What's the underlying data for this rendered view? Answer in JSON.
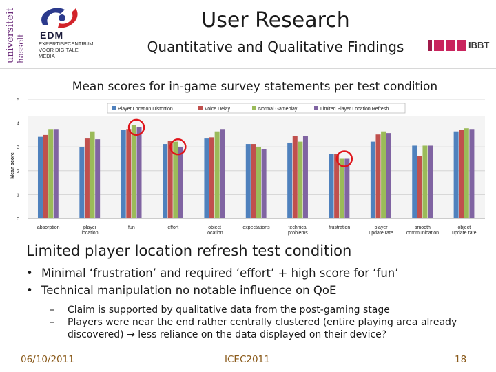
{
  "header": {
    "title": "User Research",
    "subtitle": "Quantitative and Qualitative Findings",
    "uh_logo": {
      "line1": "universiteit",
      "line2": "hasselt"
    },
    "edm_logo": {
      "name": "EDM",
      "subtitle": "EXPERTISECENTRUM VOOR DIGITALE MEDIA"
    },
    "ibbt_logo": {
      "name": "IBBT"
    }
  },
  "chart_heading": "Mean scores for in-game survey statements per test condition",
  "chart_data": {
    "type": "bar",
    "title": "",
    "xlabel": "",
    "ylabel": "Mean score",
    "ylim": [
      0,
      5
    ],
    "yticks": [
      "0",
      "1",
      "2",
      "3",
      "4",
      "5"
    ],
    "grid": true,
    "legend_position": "top",
    "categories": [
      "absorption",
      "player location",
      "fun",
      "effort",
      "object location",
      "expectations",
      "technical problems",
      "frustration",
      "player update rate",
      "smooth communication",
      "object update rate"
    ],
    "series": [
      {
        "name": "Player Location Distortion",
        "color": "#4f81bd",
        "values": [
          3.42,
          3.0,
          3.72,
          3.12,
          3.35,
          3.12,
          3.18,
          2.7,
          3.22,
          3.05,
          3.65
        ]
      },
      {
        "name": "Voice Delay",
        "color": "#c0504d",
        "values": [
          3.5,
          3.35,
          3.75,
          3.25,
          3.4,
          3.12,
          3.45,
          2.7,
          3.52,
          2.62,
          3.72
        ]
      },
      {
        "name": "Normal Gameplay",
        "color": "#9bbb59",
        "values": [
          3.75,
          3.65,
          3.92,
          3.22,
          3.65,
          3.0,
          3.22,
          2.5,
          3.65,
          3.05,
          3.78
        ]
      },
      {
        "name": "Limited Player Location Refresh",
        "color": "#8064a2",
        "values": [
          3.75,
          3.32,
          3.82,
          3.0,
          3.75,
          2.9,
          3.45,
          2.5,
          3.58,
          3.05,
          3.75
        ]
      }
    ],
    "highlighted": [
      {
        "category": "fun",
        "series": "Limited Player Location Refresh"
      },
      {
        "category": "effort",
        "series": "Limited Player Location Refresh"
      },
      {
        "category": "frustration",
        "series": "Limited Player Location Refresh"
      }
    ],
    "highlight_color": "#e0151b"
  },
  "section_heading": "Limited player location refresh test condition",
  "bullets": [
    "Minimal ‘frustration’ and required ‘effort’ + high score for ‘fun’",
    "Technical manipulation no notable influence on QoE"
  ],
  "bullet_glyph": "•",
  "dash_glyph": "–",
  "sub_bullets": [
    "Claim is supported by qualitative data from the post-gaming stage",
    "Players were near the end rather centrally clustered (entire playing area already discovered) → less reliance on the data displayed on their device?"
  ],
  "footer": {
    "date": "06/10/2011",
    "conference": "ICEC2011",
    "page": "18"
  }
}
